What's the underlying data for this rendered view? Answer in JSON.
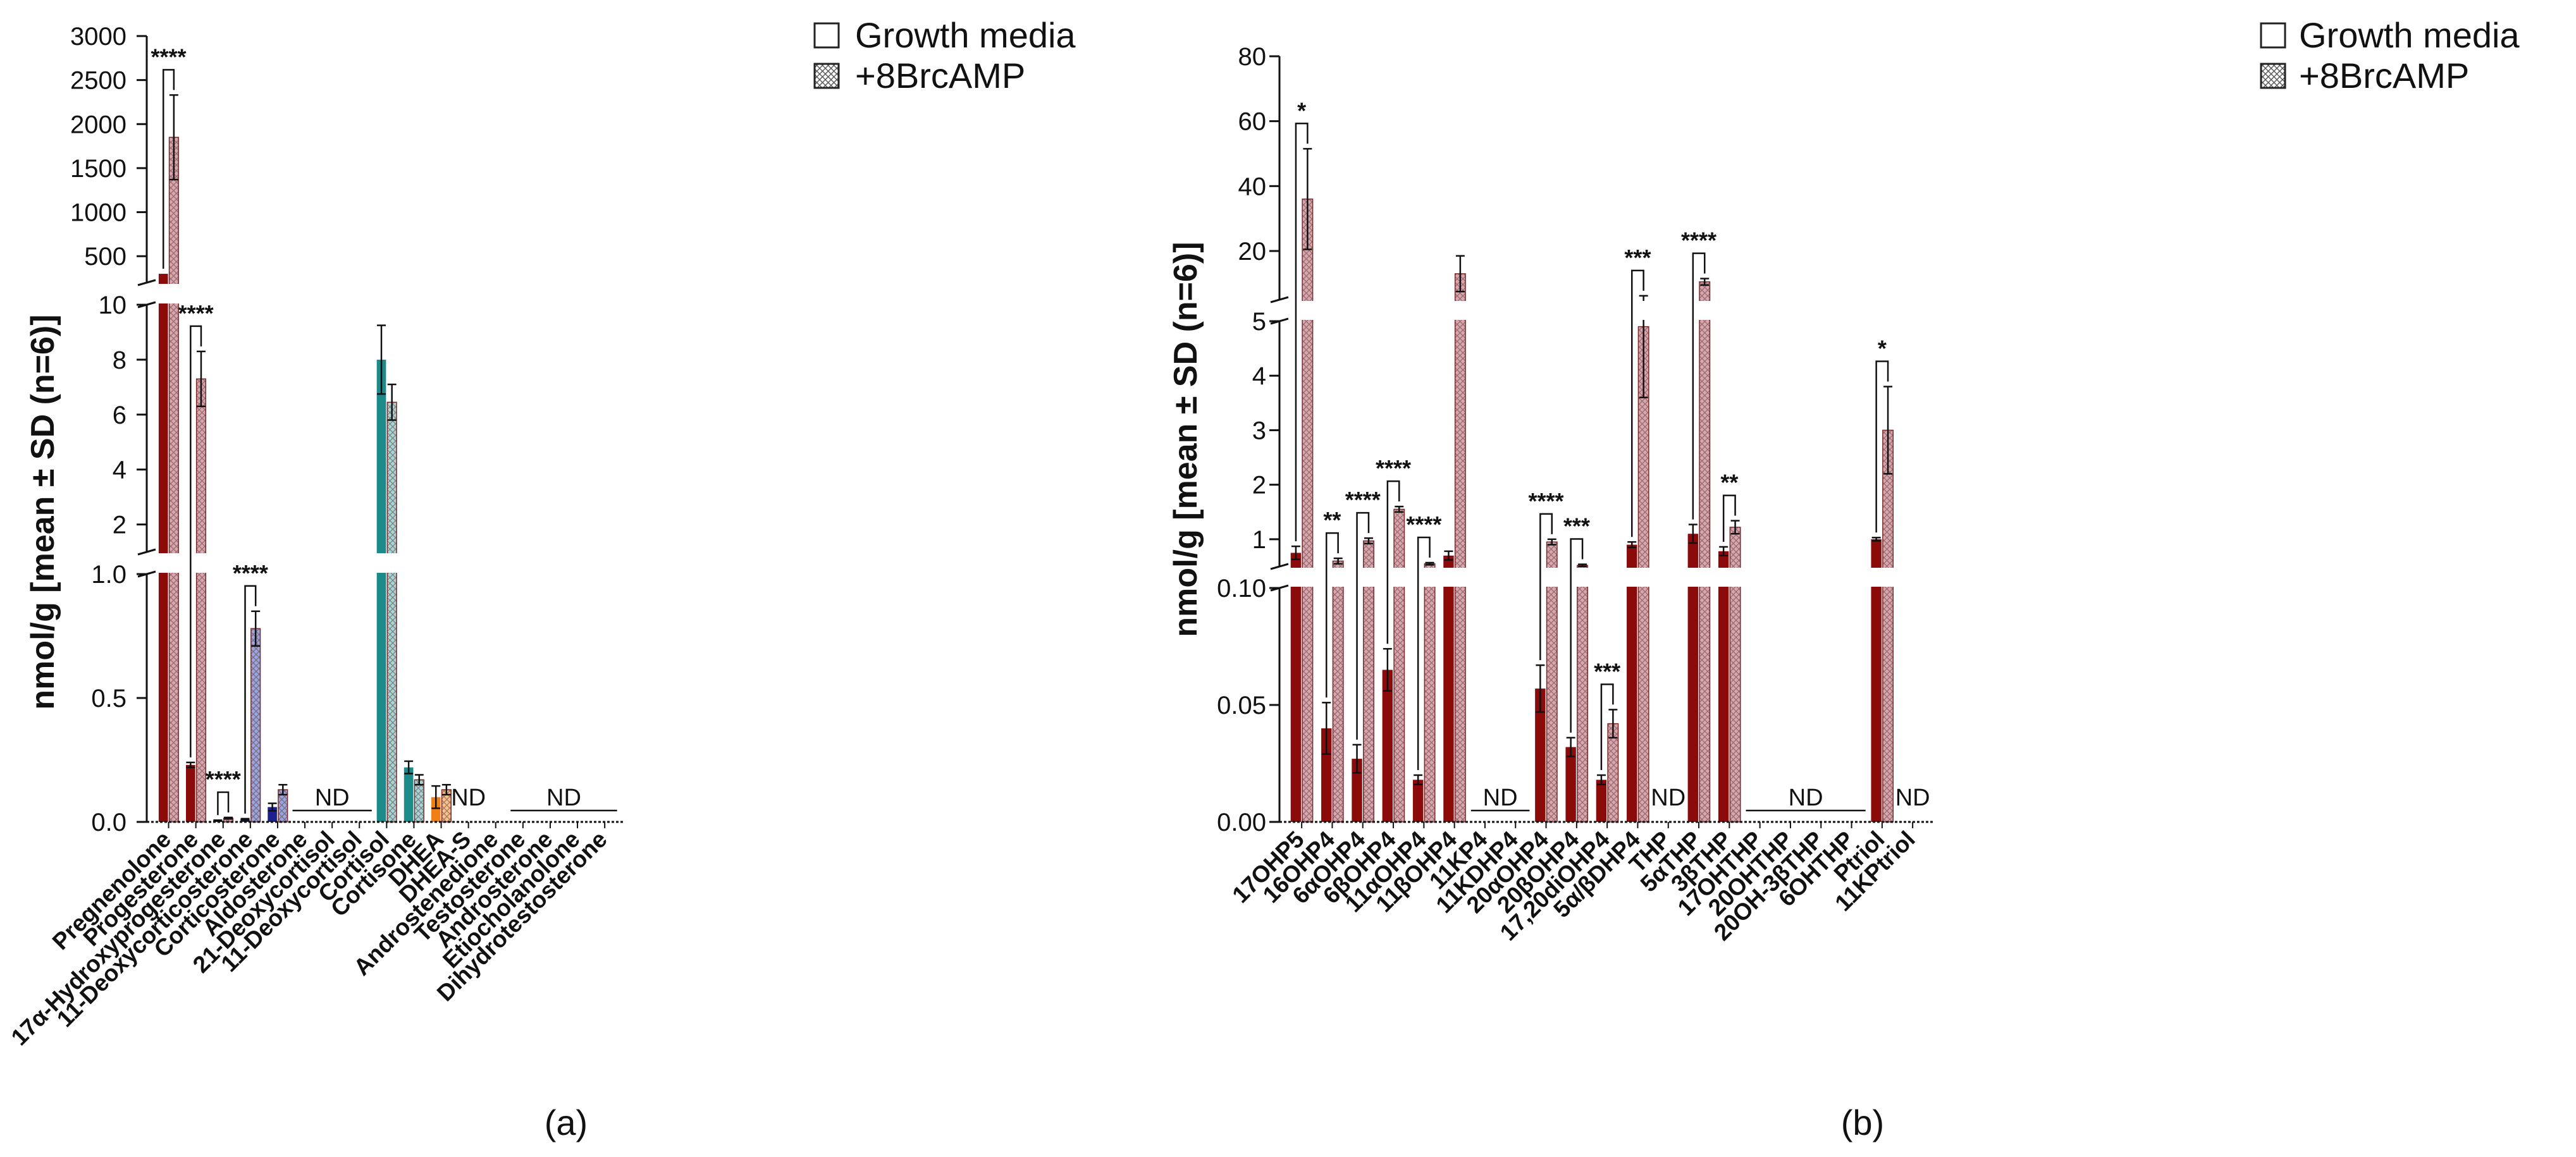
{
  "legend": {
    "growth": "Growth media",
    "camp": "+8BrcAMP"
  },
  "colors": {
    "dark_red": "#8b0a0a",
    "pink_hatch": "#d9a6ad",
    "navy": "#1c1f8c",
    "light_blue": "#9aa6dd",
    "teal": "#1d8a8a",
    "light_teal": "#a8d5d5",
    "orange": "#f07f15",
    "light_orange": "#f8c08f"
  },
  "chart_data": [
    {
      "type": "bar",
      "panel_label": "(a)",
      "ylabel": "nmol/g [mean ± SD (n=6)]",
      "segments": [
        {
          "range": [
            0,
            1.0
          ],
          "ticks": [
            "0.0",
            "0.5",
            "1.0"
          ]
        },
        {
          "range": [
            1.0,
            10.0
          ],
          "ticks": [
            "2",
            "4",
            "6",
            "8",
            "10"
          ]
        },
        {
          "range": [
            200,
            3000
          ],
          "ticks": [
            "500",
            "1000",
            "1500",
            "2000",
            "2500",
            "3000"
          ]
        }
      ],
      "categories": [
        "Pregnenolone",
        "Progesterone",
        "17α-Hydroxyprogesterone",
        "11-Deoxycorticosterone",
        "Corticosterone",
        "Aldosterone",
        "21-Deoxycortisol",
        "11-Deoxycortisol",
        "Cortisol",
        "Cortisone",
        "DHEA",
        "DHEA-S",
        "Androstenedione",
        "Testosterone",
        "Androsterone",
        "Etiocholanolone",
        "Dihydrotestosterone"
      ],
      "series": [
        {
          "name": "Growth media",
          "values": [
            300,
            0.23,
            0.005,
            0.01,
            0.06,
            null,
            null,
            null,
            8.0,
            0.22,
            0.1,
            null,
            null,
            null,
            null,
            null,
            null
          ],
          "errors": [
            null,
            0.01,
            0.002,
            0.003,
            0.015,
            null,
            null,
            null,
            1.25,
            0.025,
            0.045,
            null,
            null,
            null,
            null,
            null,
            null
          ]
        },
        {
          "name": "+8BrcAMP",
          "values": [
            1850,
            7.3,
            0.015,
            0.78,
            0.13,
            null,
            null,
            null,
            6.45,
            0.17,
            0.13,
            null,
            null,
            null,
            null,
            null,
            null
          ],
          "errors": [
            480,
            1.0,
            0.003,
            0.07,
            0.02,
            null,
            null,
            null,
            0.65,
            0.02,
            0.02,
            null,
            null,
            null,
            null,
            null,
            null
          ]
        }
      ],
      "significance": [
        {
          "category": "Pregnenolone",
          "stars": "****"
        },
        {
          "category": "Progesterone",
          "stars": "****"
        },
        {
          "category": "17α-Hydroxyprogesterone",
          "stars": "****"
        },
        {
          "category": "11-Deoxycorticosterone",
          "stars": "****"
        }
      ],
      "nd_labels": [
        {
          "from": "Aldosterone",
          "to": "11-Deoxycortisol",
          "text": "ND"
        },
        {
          "from": "DHEA-S",
          "to": "DHEA-S",
          "text": "ND"
        },
        {
          "from": "Testosterone",
          "to": "Dihydrotestosterone",
          "text": "ND"
        }
      ]
    },
    {
      "type": "bar",
      "panel_label": "(b)",
      "ylabel": "nmol/g [mean ± SD (n=6)]",
      "segments": [
        {
          "range": [
            0,
            0.1
          ],
          "ticks": [
            "0.00",
            "0.05",
            "0.10"
          ]
        },
        {
          "range": [
            0.5,
            5
          ],
          "ticks": [
            "1",
            "2",
            "3",
            "4",
            "5"
          ]
        },
        {
          "range": [
            5,
            80
          ],
          "ticks": [
            "20",
            "40",
            "60",
            "80"
          ]
        }
      ],
      "categories": [
        "17OHP5",
        "16OHP4",
        "6αOHP4",
        "6βOHP4",
        "11αOHP4",
        "11βOHP4",
        "11KP4",
        "11KDHP4",
        "20αOHP4",
        "20βOHP4",
        "17,20diOHP4",
        "5α/βDHP4",
        "THP",
        "5αTHP",
        "3βTHP",
        "17OHTHP",
        "20OHTHP",
        "20OH-3βTHP",
        "6OHTHP",
        "Ptriol",
        "11KPtriol"
      ],
      "series": [
        {
          "name": "Growth media",
          "values": [
            0.75,
            0.04,
            0.027,
            0.065,
            0.018,
            0.7,
            null,
            null,
            0.057,
            0.032,
            0.018,
            0.9,
            null,
            1.1,
            0.78,
            null,
            null,
            null,
            null,
            1.0,
            null
          ],
          "errors": [
            0.12,
            0.011,
            0.006,
            0.009,
            0.002,
            0.08,
            null,
            null,
            0.01,
            0.004,
            0.002,
            0.05,
            null,
            0.17,
            0.08,
            null,
            null,
            null,
            null,
            0.03,
            null
          ]
        },
        {
          "name": "+8BrcAMP",
          "values": [
            36,
            0.6,
            0.97,
            1.55,
            0.55,
            13,
            null,
            null,
            0.95,
            0.52,
            0.042,
            4.9,
            null,
            10.5,
            1.22,
            null,
            null,
            null,
            null,
            3.0,
            null
          ],
          "errors": [
            15.5,
            0.05,
            0.05,
            0.05,
            0.02,
            5.5,
            null,
            null,
            0.05,
            0.02,
            0.006,
            1.3,
            null,
            1.0,
            0.12,
            null,
            null,
            null,
            null,
            0.8,
            null
          ]
        }
      ],
      "significance": [
        {
          "category": "17OHP5",
          "stars": "*"
        },
        {
          "category": "16OHP4",
          "stars": "**"
        },
        {
          "category": "6αOHP4",
          "stars": "****"
        },
        {
          "category": "6βOHP4",
          "stars": "****"
        },
        {
          "category": "11αOHP4",
          "stars": "****"
        },
        {
          "category": "20αOHP4",
          "stars": "****"
        },
        {
          "category": "20βOHP4",
          "stars": "***"
        },
        {
          "category": "17,20diOHP4",
          "stars": "***"
        },
        {
          "category": "5α/βDHP4",
          "stars": "***"
        },
        {
          "category": "5αTHP",
          "stars": "****"
        },
        {
          "category": "3βTHP",
          "stars": "**"
        },
        {
          "category": "Ptriol",
          "stars": "*"
        }
      ],
      "nd_labels": [
        {
          "from": "11KP4",
          "to": "11KDHP4",
          "text": "ND"
        },
        {
          "from": "THP",
          "to": "THP",
          "text": "ND"
        },
        {
          "from": "17OHTHP",
          "to": "6OHTHP",
          "text": "ND"
        },
        {
          "from": "11KPtriol",
          "to": "11KPtriol",
          "text": "ND"
        }
      ]
    }
  ]
}
